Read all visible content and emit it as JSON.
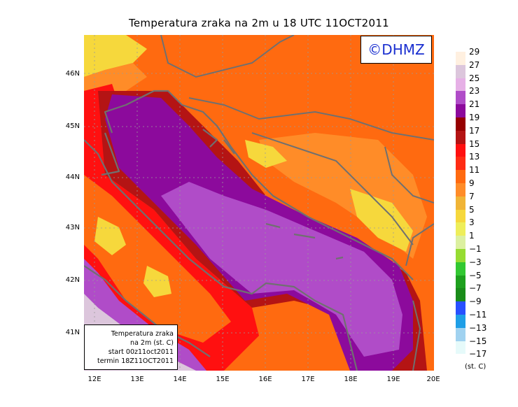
{
  "title": "Temperatura zraka na 2m u 18 UTC 11OCT2011",
  "logo": "©DHMZ",
  "info": {
    "line1": "Temperatura zraka",
    "line2": "na 2m (st. C)",
    "line3": "start 00z11oct2011",
    "line4": "termin 18Z11OCT2011"
  },
  "axes": {
    "lat_labels": [
      "46N",
      "45N",
      "44N",
      "43N",
      "42N",
      "41N"
    ],
    "lon_labels": [
      "12E",
      "13E",
      "14E",
      "15E",
      "16E",
      "17E",
      "18E",
      "19E",
      "20E"
    ],
    "lon_range": [
      11.8,
      20.0
    ],
    "lat_range": [
      40.2,
      46.8
    ]
  },
  "legend": {
    "labels": [
      "29",
      "27",
      "25",
      "23",
      "21",
      "19",
      "17",
      "15",
      "13",
      "11",
      "9",
      "7",
      "5",
      "3",
      "1",
      "−1",
      "−3",
      "−5",
      "−7",
      "−9",
      "−11",
      "−13",
      "−15",
      "−17"
    ],
    "colors": [
      "#fff0e0",
      "#dcc6dc",
      "#e6b0e6",
      "#b04cc8",
      "#8c0a9c",
      "#960000",
      "#b41414",
      "#ff1010",
      "#ff2c14",
      "#ff6a10",
      "#ff8c28",
      "#f0b436",
      "#f6d83c",
      "#eeee5a",
      "#dcf0a0",
      "#96dc32",
      "#32c832",
      "#1ea01e",
      "#1a8c1a",
      "#2850ff",
      "#1e9ee6",
      "#a0d2f0",
      "#e6fafa"
    ],
    "units": "(st. C)"
  },
  "map_colors": {
    "sea_mid": "#b04cc8",
    "sea_coastal": "#8c0a9c",
    "sea_far": "#dcc6dc",
    "warm_band": "#b41414",
    "red": "#ff1010",
    "orange_red": "#ff2c14",
    "orange": "#ff6a10",
    "light_orange": "#ff8c28",
    "yellow": "#f6d83c",
    "coast_line": "#707070"
  }
}
